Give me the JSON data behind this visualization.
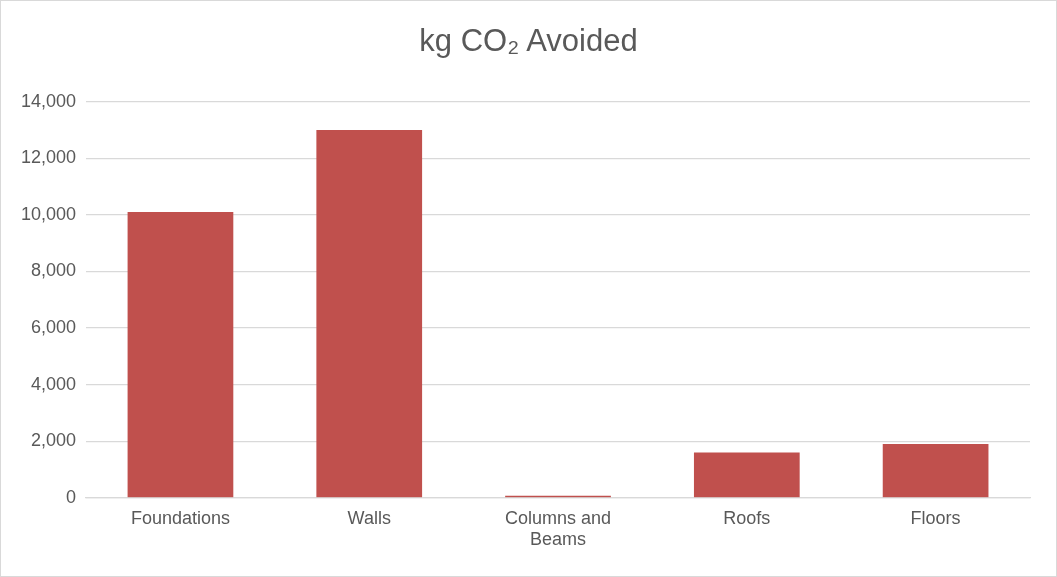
{
  "chart_data": {
    "type": "bar",
    "title": "kg CO₂ Avoided",
    "categories": [
      "Foundations",
      "Walls",
      "Columns and Beams",
      "Roofs",
      "Floors"
    ],
    "values": [
      10100,
      13000,
      70,
      1600,
      1900
    ],
    "color": "#c0504d",
    "ylim": [
      0,
      14000
    ],
    "yticks": [
      {
        "value": 0,
        "label": "0"
      },
      {
        "value": 2000,
        "label": "2,000"
      },
      {
        "value": 4000,
        "label": "4,000"
      },
      {
        "value": 6000,
        "label": "6,000"
      },
      {
        "value": 8000,
        "label": "8,000"
      },
      {
        "value": 10000,
        "label": "10,000"
      },
      {
        "value": 12000,
        "label": "12,000"
      },
      {
        "value": 14000,
        "label": "14,000"
      }
    ],
    "grid": "y",
    "legend": false
  }
}
